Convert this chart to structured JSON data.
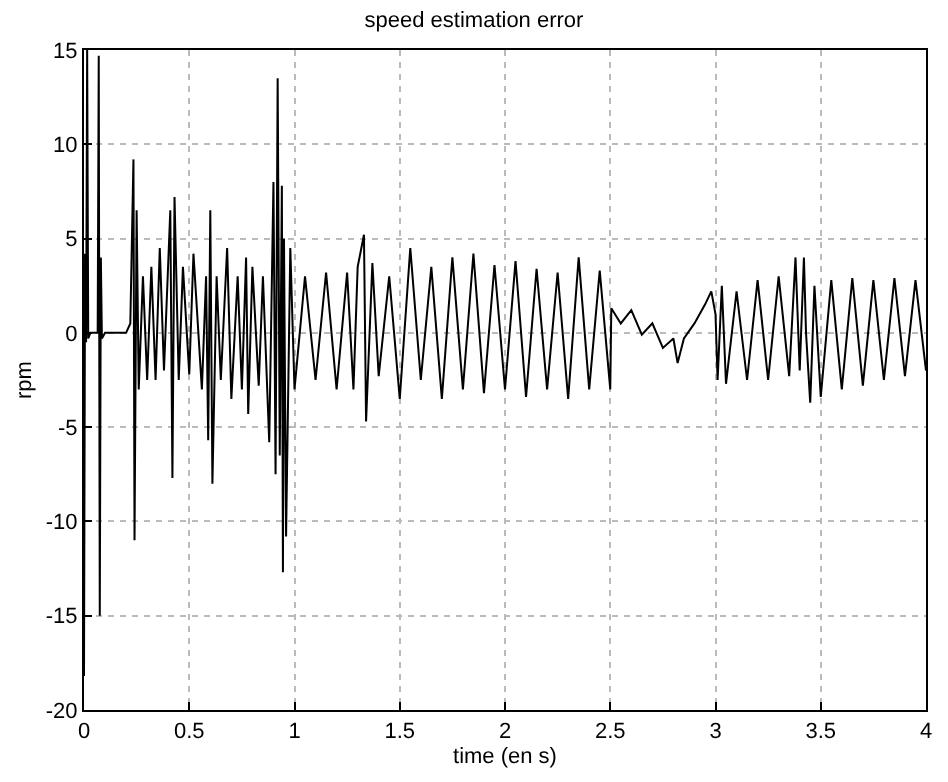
{
  "chart_data": {
    "type": "line",
    "title": "speed estimation error",
    "xlabel": "time (en s)",
    "ylabel": "rpm",
    "xlim": [
      0,
      4
    ],
    "xticks": [
      0,
      0.5,
      1,
      1.5,
      2,
      2.5,
      3,
      3.5,
      4
    ],
    "ylim": [
      -20,
      15
    ],
    "yticks": [
      -20,
      -15,
      -10,
      -5,
      0,
      5,
      10,
      15
    ],
    "grid": true,
    "marker": "none",
    "line_style": "solid",
    "series": [
      {
        "color": "#000000",
        "x": [
          0,
          0.005,
          0.01,
          0.015,
          0.02,
          0.03,
          0.065,
          0.07,
          0.075,
          0.08,
          0.085,
          0.1,
          0.2,
          0.22,
          0.235,
          0.24,
          0.25,
          0.26,
          0.28,
          0.3,
          0.32,
          0.34,
          0.36,
          0.38,
          0.41,
          0.42,
          0.43,
          0.45,
          0.47,
          0.5,
          0.52,
          0.56,
          0.58,
          0.59,
          0.6,
          0.61,
          0.63,
          0.65,
          0.68,
          0.7,
          0.73,
          0.75,
          0.77,
          0.78,
          0.8,
          0.83,
          0.85,
          0.88,
          0.9,
          0.91,
          0.92,
          0.93,
          0.94,
          0.945,
          0.95,
          0.96,
          0.98,
          1.0,
          1.05,
          1.1,
          1.15,
          1.2,
          1.25,
          1.28,
          1.3,
          1.33,
          1.34,
          1.37,
          1.4,
          1.45,
          1.5,
          1.55,
          1.6,
          1.65,
          1.7,
          1.75,
          1.8,
          1.85,
          1.9,
          1.95,
          2.0,
          2.05,
          2.1,
          2.15,
          2.2,
          2.25,
          2.3,
          2.35,
          2.4,
          2.45,
          2.5,
          2.505,
          2.55,
          2.6,
          2.65,
          2.7,
          2.75,
          2.8,
          2.82,
          2.85,
          2.9,
          2.95,
          2.98,
          3.0,
          3.01,
          3.03,
          3.05,
          3.1,
          3.15,
          3.2,
          3.25,
          3.3,
          3.35,
          3.38,
          3.4,
          3.42,
          3.43,
          3.45,
          3.47,
          3.5,
          3.55,
          3.6,
          3.65,
          3.7,
          3.75,
          3.8,
          3.85,
          3.9,
          3.95,
          4.0
        ],
        "values": [
          -18.2,
          4.2,
          -0.5,
          15,
          -0.3,
          0,
          0,
          14.7,
          -15,
          4,
          -0.3,
          0,
          0,
          0.5,
          9.2,
          -11,
          6.5,
          -3,
          3,
          -2.5,
          3.5,
          -2.5,
          4.5,
          -2,
          6.5,
          -7.7,
          7.2,
          -2.5,
          3.5,
          -2.2,
          4.2,
          -3,
          3,
          -5.7,
          6.5,
          -8,
          3,
          -2.5,
          4.5,
          -3.5,
          3,
          -3,
          4,
          -4.3,
          3.5,
          -2.8,
          3,
          -5.8,
          8,
          -7.5,
          13.5,
          -6.5,
          7.8,
          -12.7,
          5,
          -10.8,
          4.5,
          -3,
          3,
          -2.5,
          3.2,
          -3,
          3.2,
          -3,
          3.5,
          5.2,
          -4.7,
          3.7,
          -2.3,
          3,
          -3.5,
          4.5,
          -2.5,
          3.5,
          -3.5,
          4,
          -3,
          4.2,
          -3.2,
          3.6,
          -3,
          3.8,
          -3.4,
          3.4,
          -3,
          3.2,
          -3.5,
          4,
          -3,
          3.3,
          -3,
          1.3,
          0.5,
          1.2,
          -0.1,
          0.5,
          -0.8,
          -0.3,
          -1.6,
          -0.3,
          0.5,
          1.5,
          2.2,
          1,
          -2.5,
          2.5,
          -2.7,
          2.2,
          -2.5,
          2.8,
          -2.5,
          3,
          -2.3,
          4,
          -2,
          4,
          0,
          -3.7,
          2.5,
          -3.4,
          2.8,
          -3,
          2.9,
          -2.8,
          2.8,
          -2.5,
          2.9,
          -2.3,
          2.8,
          -2
        ]
      }
    ]
  }
}
